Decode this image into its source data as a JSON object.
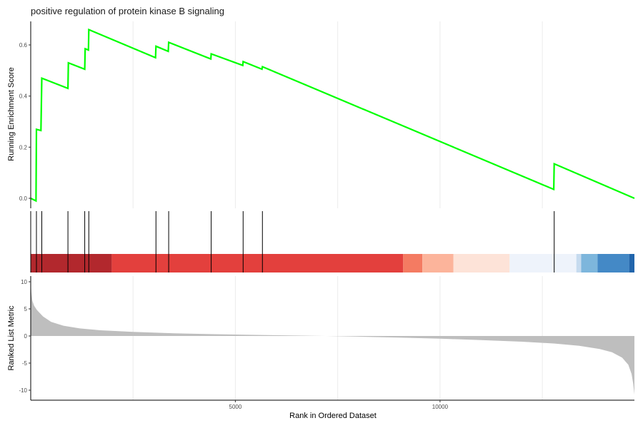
{
  "chart_data": {
    "type": "line",
    "title": "positive regulation of protein kinase B signaling",
    "xlabel": "Rank in Ordered Dataset",
    "x_ticks": [
      5000,
      10000
    ],
    "x_range": [
      0,
      14750
    ],
    "colors": {
      "running_score_line": "#00ff00",
      "ranked_metric_fill": "#bebebe",
      "hit_line": "#000000",
      "grid": "#ebebeb"
    },
    "running_score": {
      "ylabel": "Running Enrichment Score",
      "y_ticks": [
        0.0,
        0.2,
        0.4,
        0.6
      ],
      "y_tick_labels": [
        "0.0",
        "0.2",
        "0.4",
        "0.6"
      ],
      "ylim": [
        -0.02,
        0.7
      ],
      "points": [
        [
          0,
          0.0
        ],
        [
          130,
          -0.01
        ],
        [
          140,
          0.27
        ],
        [
          250,
          0.265
        ],
        [
          270,
          0.47
        ],
        [
          910,
          0.43
        ],
        [
          920,
          0.53
        ],
        [
          1320,
          0.505
        ],
        [
          1330,
          0.585
        ],
        [
          1410,
          0.58
        ],
        [
          1420,
          0.66
        ],
        [
          3050,
          0.55
        ],
        [
          3060,
          0.595
        ],
        [
          3360,
          0.575
        ],
        [
          3370,
          0.61
        ],
        [
          4400,
          0.545
        ],
        [
          4410,
          0.565
        ],
        [
          5180,
          0.52
        ],
        [
          5190,
          0.535
        ],
        [
          5650,
          0.505
        ],
        [
          5660,
          0.515
        ],
        [
          12780,
          0.035
        ],
        [
          12790,
          0.135
        ],
        [
          14750,
          0.0
        ]
      ]
    },
    "hits": [
      140,
      270,
      910,
      1320,
      1420,
      3060,
      3370,
      4410,
      5190,
      5660,
      12790
    ],
    "color_band": [
      {
        "start": 0,
        "end": 1980,
        "color": "#b2282d"
      },
      {
        "start": 1980,
        "end": 9100,
        "color": "#e3403d"
      },
      {
        "start": 9100,
        "end": 9570,
        "color": "#f47b62"
      },
      {
        "start": 9570,
        "end": 10330,
        "color": "#fcb49b"
      },
      {
        "start": 10330,
        "end": 11700,
        "color": "#fde3d8"
      },
      {
        "start": 11700,
        "end": 13330,
        "color": "#eef3fb"
      },
      {
        "start": 13330,
        "end": 13450,
        "color": "#c6dbef"
      },
      {
        "start": 13450,
        "end": 13850,
        "color": "#7db6dc"
      },
      {
        "start": 13850,
        "end": 14620,
        "color": "#4489c6"
      },
      {
        "start": 14620,
        "end": 14750,
        "color": "#2165ac"
      }
    ],
    "ranked_metric": {
      "ylabel": "Ranked List Metric",
      "y_ticks": [
        10,
        5,
        0,
        -5,
        -10
      ],
      "y_tick_labels": [
        "10",
        "5",
        "0",
        "-5",
        "-10"
      ],
      "ylim": [
        -11.2,
        11.2
      ],
      "points": [
        [
          0,
          10.0
        ],
        [
          15,
          8.0
        ],
        [
          40,
          6.5
        ],
        [
          80,
          5.6
        ],
        [
          150,
          4.8
        ],
        [
          300,
          3.6
        ],
        [
          500,
          2.6
        ],
        [
          800,
          1.9
        ],
        [
          1200,
          1.4
        ],
        [
          1700,
          1.05
        ],
        [
          2500,
          0.75
        ],
        [
          3500,
          0.5
        ],
        [
          4500,
          0.33
        ],
        [
          5500,
          0.2
        ],
        [
          6500,
          0.08
        ],
        [
          7200,
          0.0
        ],
        [
          8000,
          -0.12
        ],
        [
          9000,
          -0.3
        ],
        [
          10000,
          -0.5
        ],
        [
          11000,
          -0.75
        ],
        [
          12000,
          -1.05
        ],
        [
          12800,
          -1.4
        ],
        [
          13400,
          -1.8
        ],
        [
          13900,
          -2.4
        ],
        [
          14200,
          -3.0
        ],
        [
          14450,
          -4.0
        ],
        [
          14600,
          -5.3
        ],
        [
          14680,
          -7.0
        ],
        [
          14720,
          -8.8
        ],
        [
          14750,
          -10.8
        ]
      ]
    }
  }
}
